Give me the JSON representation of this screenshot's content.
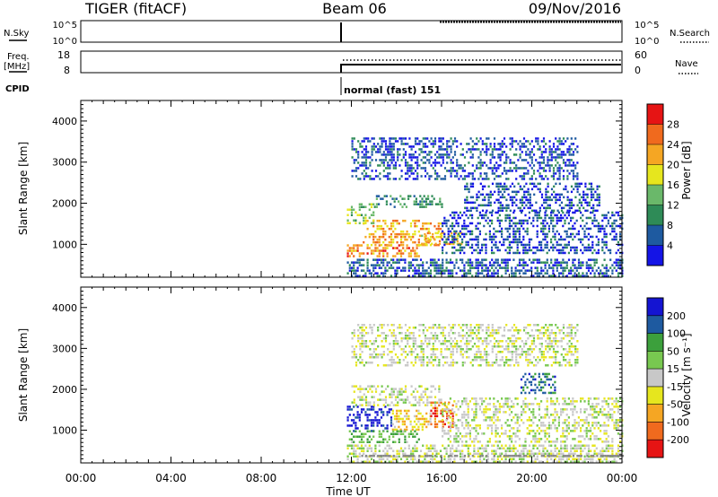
{
  "header": {
    "radar": "TIGER (fitACF)",
    "beam": "Beam 06",
    "date": "09/Nov/2016"
  },
  "strip1": {
    "left_label": "N.Sky",
    "right_label": "N.Search",
    "left_ticks": [
      "10^5",
      "10^0"
    ],
    "right_ticks": [
      "10^5",
      "10^0"
    ]
  },
  "strip2": {
    "left_label_1": "Freq.",
    "left_label_2": "[MHz]",
    "right_label": "Nave",
    "left_ticks": [
      "18",
      "8"
    ],
    "right_ticks": [
      "60",
      "0"
    ]
  },
  "cpid": {
    "label": "CPID",
    "text": "normal (fast) 151"
  },
  "colors": {
    "power": [
      "#1414e6",
      "#1e5aa0",
      "#2e8b57",
      "#6ab86a",
      "#e6e61e",
      "#f5a623",
      "#f06a1e",
      "#e61414"
    ],
    "velocity": [
      "#1414d2",
      "#1e5aa0",
      "#3ca03c",
      "#78c850",
      "#c8c8c8",
      "#e6e61e",
      "#f5a623",
      "#f06a1e",
      "#e61414"
    ]
  },
  "chart_data": [
    {
      "type": "heatmap",
      "title": "",
      "xlabel": "",
      "ylabel": "Slant Range [km]",
      "x_ticks": [
        "00:00",
        "04:00",
        "08:00",
        "12:00",
        "16:00",
        "20:00",
        "00:00"
      ],
      "y_ticks": [
        "1000",
        "2000",
        "3000",
        "4000"
      ],
      "xlim": [
        0,
        24
      ],
      "ylim": [
        200,
        4500
      ],
      "colorbar": {
        "label": "Power [dB]",
        "ticks": [
          "4",
          "8",
          "12",
          "16",
          "20",
          "24",
          "28"
        ],
        "range": [
          0,
          32
        ]
      },
      "regions": [
        {
          "t0": 11.8,
          "t1": 24.0,
          "r0": 220,
          "r1": 650,
          "value": 6
        },
        {
          "t0": 11.8,
          "t1": 15.0,
          "r0": 700,
          "r1": 1000,
          "value": 24
        },
        {
          "t0": 12.5,
          "t1": 16.0,
          "r0": 1000,
          "r1": 1600,
          "value": 22
        },
        {
          "t0": 15.0,
          "t1": 17.0,
          "r0": 1000,
          "r1": 1300,
          "value": 20
        },
        {
          "t0": 11.8,
          "t1": 13.0,
          "r0": 1500,
          "r1": 2000,
          "value": 14
        },
        {
          "t0": 13.0,
          "t1": 16.0,
          "r0": 1900,
          "r1": 2200,
          "value": 10
        },
        {
          "t0": 16.0,
          "t1": 24.0,
          "r0": 800,
          "r1": 1800,
          "value": 5
        },
        {
          "t0": 17.0,
          "t1": 23.0,
          "r0": 1800,
          "r1": 2500,
          "value": 5
        },
        {
          "t0": 12.0,
          "t1": 22.0,
          "r0": 2600,
          "r1": 3600,
          "value": 5
        }
      ]
    },
    {
      "type": "heatmap",
      "title": "",
      "xlabel": "Time UT",
      "ylabel": "Slant Range [km]",
      "x_ticks": [
        "00:00",
        "04:00",
        "08:00",
        "12:00",
        "16:00",
        "20:00",
        "00:00"
      ],
      "y_ticks": [
        "1000",
        "2000",
        "3000",
        "4000"
      ],
      "xlim": [
        0,
        24
      ],
      "ylim": [
        200,
        4500
      ],
      "colorbar": {
        "label": "Velocity [m s⁻¹]",
        "ticks": [
          "200",
          "100",
          "50",
          "15",
          "-15",
          "-50",
          "-100",
          "-200"
        ],
        "range": [
          -250,
          250
        ]
      },
      "regions": [
        {
          "t0": 11.8,
          "t1": 24.0,
          "r0": 220,
          "r1": 650,
          "value": 0
        },
        {
          "t0": 11.8,
          "t1": 13.8,
          "r0": 1000,
          "r1": 1600,
          "value": 220
        },
        {
          "t0": 13.8,
          "t1": 15.5,
          "r0": 1000,
          "r1": 1500,
          "value": -70
        },
        {
          "t0": 15.5,
          "t1": 16.5,
          "r0": 1100,
          "r1": 1700,
          "value": -180
        },
        {
          "t0": 11.8,
          "t1": 15.0,
          "r0": 700,
          "r1": 1000,
          "value": 80
        },
        {
          "t0": 12.0,
          "t1": 16.0,
          "r0": 1600,
          "r1": 2100,
          "value": 0
        },
        {
          "t0": 16.0,
          "t1": 24.0,
          "r0": 700,
          "r1": 1800,
          "value": 0
        },
        {
          "t0": 19.5,
          "t1": 21.0,
          "r0": 1900,
          "r1": 2400,
          "value": 150
        },
        {
          "t0": 12.0,
          "t1": 22.0,
          "r0": 2600,
          "r1": 3600,
          "value": 0
        }
      ]
    }
  ],
  "time_label": "Time UT"
}
